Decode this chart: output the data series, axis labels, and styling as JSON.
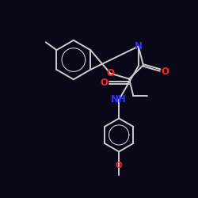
{
  "bg_color": "#080818",
  "bond_color": "#cccccc",
  "atom_colors": {
    "O": "#ff2222",
    "N": "#3333ff"
  },
  "bond_width": 1.4,
  "font_size": 8.5,
  "figsize": [
    2.5,
    2.5
  ],
  "dpi": 100,
  "xlim": [
    -4.5,
    4.5
  ],
  "ylim": [
    -5.5,
    4.5
  ]
}
